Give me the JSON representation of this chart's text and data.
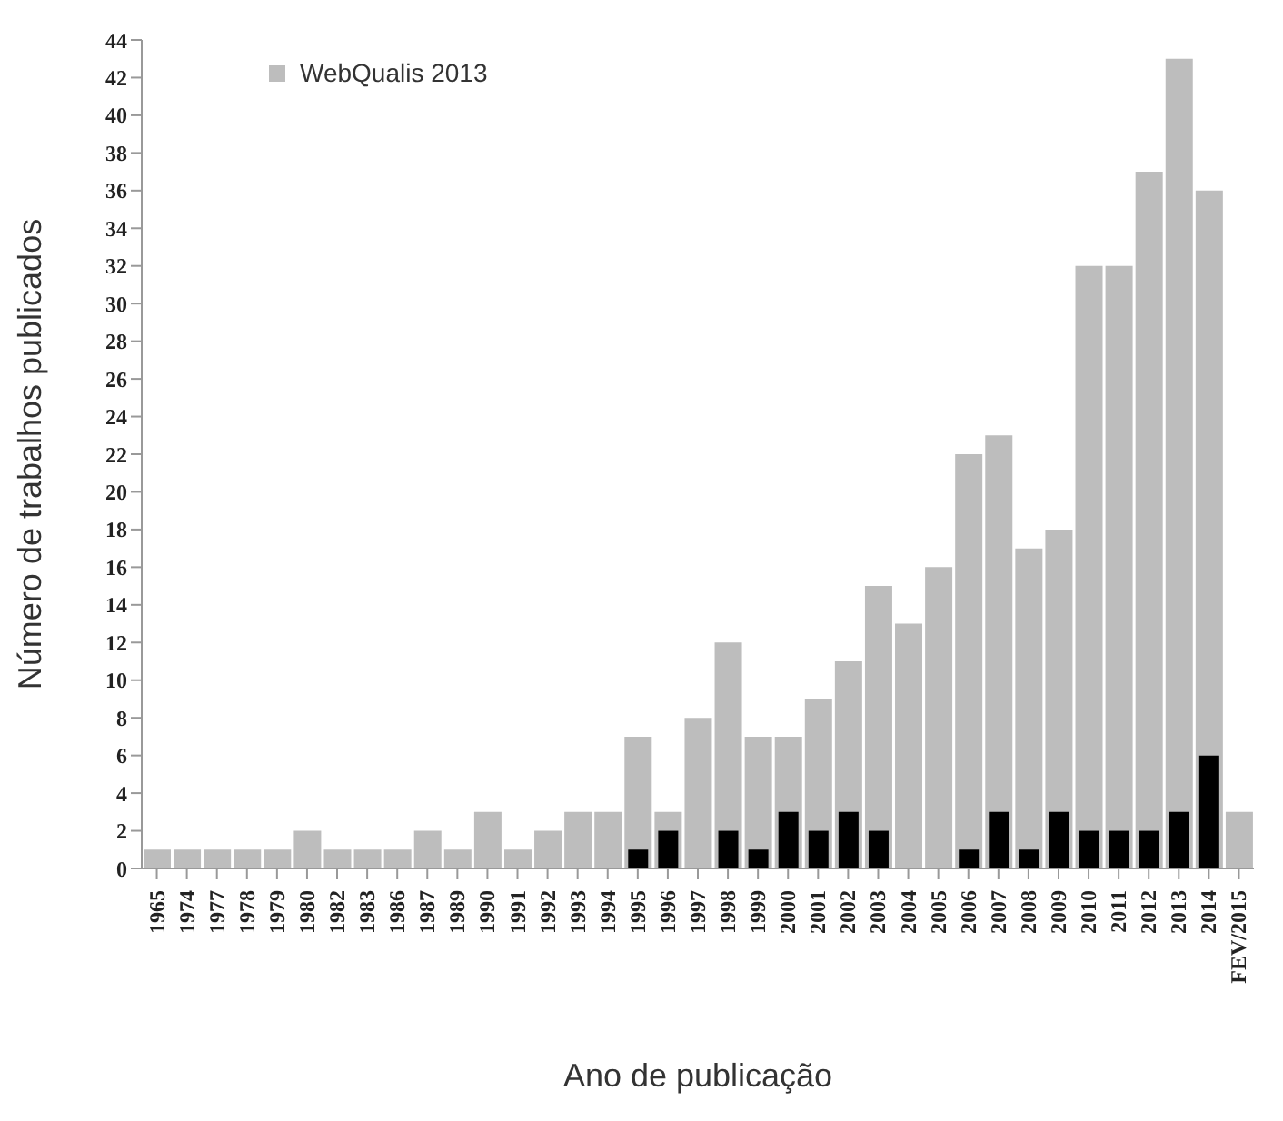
{
  "chart_data": {
    "type": "bar",
    "xlabel": "Ano de publicação",
    "ylabel": "Número de trabalhos publicados",
    "categories": [
      "1965",
      "1974",
      "1977",
      "1978",
      "1979",
      "1980",
      "1982",
      "1983",
      "1986",
      "1987",
      "1989",
      "1990",
      "1991",
      "1992",
      "1993",
      "1994",
      "1995",
      "1996",
      "1997",
      "1998",
      "1999",
      "2000",
      "2001",
      "2002",
      "2003",
      "2004",
      "2005",
      "2006",
      "2007",
      "2008",
      "2009",
      "2010",
      "2011",
      "2012",
      "2013",
      "2014",
      "FEV/2015"
    ],
    "series": [
      {
        "name": "WebQualis 2013",
        "color": "#bdbdbd",
        "values": [
          1,
          1,
          1,
          1,
          1,
          2,
          1,
          1,
          1,
          2,
          1,
          3,
          1,
          2,
          3,
          3,
          7,
          3,
          8,
          12,
          7,
          7,
          9,
          11,
          15,
          13,
          16,
          22,
          23,
          17,
          18,
          32,
          32,
          37,
          43,
          36,
          3
        ]
      },
      {
        "color": "#000000",
        "values": [
          null,
          null,
          null,
          null,
          null,
          null,
          null,
          null,
          null,
          null,
          null,
          null,
          null,
          null,
          null,
          null,
          1,
          2,
          null,
          2,
          1,
          3,
          2,
          3,
          2,
          null,
          null,
          1,
          3,
          1,
          3,
          2,
          2,
          2,
          3,
          6,
          null
        ]
      }
    ],
    "ylim": [
      0,
      44
    ],
    "yticks": [
      0,
      2,
      4,
      6,
      8,
      10,
      12,
      14,
      16,
      18,
      20,
      22,
      24,
      26,
      28,
      30,
      32,
      34,
      36,
      38,
      40,
      42,
      44
    ],
    "legend": "top left"
  }
}
